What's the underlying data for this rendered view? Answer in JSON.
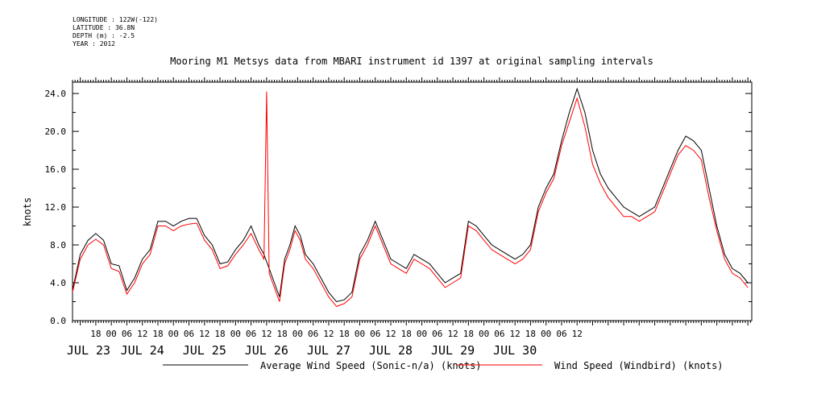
{
  "header": {
    "longitude": "LONGITUDE : 122W(-122)",
    "latitude": "LATITUDE : 36.8N",
    "depth": "DEPTH (m) : -2.5",
    "year": "YEAR : 2012"
  },
  "chart_data": {
    "type": "line",
    "title": "Mooring M1 Metsys data from MBARI instrument id 1397 at original sampling intervals",
    "ylabel": "knots",
    "xlabel": "",
    "ylim": [
      0,
      25.2
    ],
    "xlim": [
      "JUL 23 09:00",
      "JUL 30 15:30"
    ],
    "y_ticks": [
      "0.0",
      "4.0",
      "8.0",
      "12.0",
      "16.0",
      "20.0",
      "24.0"
    ],
    "x_hour_ticks": [
      "18",
      "00",
      "06",
      "12",
      "18",
      "00",
      "06",
      "12",
      "18",
      "00",
      "06",
      "12",
      "18",
      "00",
      "06",
      "12",
      "18",
      "00",
      "06",
      "12",
      "18",
      "00",
      "06",
      "12",
      "18",
      "00",
      "06",
      "12",
      "18",
      "00",
      "06",
      "12"
    ],
    "x_day_labels": [
      "JUL 23",
      "JUL 24",
      "JUL 25",
      "JUL 26",
      "JUL 27",
      "JUL 28",
      "JUL 29",
      "JUL 30"
    ],
    "x_unit": "hours after JUL 23 00:00",
    "series": [
      {
        "name": "Average Wind Speed (Sonic-n/a) (knots)",
        "color": "#000000",
        "values": [
          [
            9,
            3.2
          ],
          [
            12,
            7
          ],
          [
            15,
            8.5
          ],
          [
            18,
            9.2
          ],
          [
            21,
            8.5
          ],
          [
            24,
            6
          ],
          [
            27,
            5.8
          ],
          [
            30,
            3.2
          ],
          [
            33,
            4.5
          ],
          [
            36,
            6.5
          ],
          [
            39,
            7.5
          ],
          [
            42,
            10.5
          ],
          [
            45,
            10.5
          ],
          [
            48,
            10
          ],
          [
            51,
            10.5
          ],
          [
            54,
            10.8
          ],
          [
            57,
            10.8
          ],
          [
            60,
            9
          ],
          [
            63,
            8
          ],
          [
            66,
            6
          ],
          [
            69,
            6.2
          ],
          [
            72,
            7.5
          ],
          [
            75,
            8.5
          ],
          [
            78,
            10
          ],
          [
            81,
            8
          ],
          [
            83,
            7
          ],
          [
            85,
            5.5
          ],
          [
            87,
            4
          ],
          [
            89,
            2.5
          ],
          [
            91,
            6.5
          ],
          [
            93,
            8
          ],
          [
            95,
            10
          ],
          [
            97,
            9
          ],
          [
            99,
            7
          ],
          [
            102,
            6
          ],
          [
            105,
            4.5
          ],
          [
            108,
            3
          ],
          [
            111,
            2
          ],
          [
            114,
            2.2
          ],
          [
            117,
            3
          ],
          [
            120,
            7
          ],
          [
            123,
            8.5
          ],
          [
            126,
            10.5
          ],
          [
            129,
            8.5
          ],
          [
            132,
            6.5
          ],
          [
            135,
            6
          ],
          [
            138,
            5.5
          ],
          [
            141,
            7
          ],
          [
            144,
            6.5
          ],
          [
            147,
            6
          ],
          [
            150,
            5
          ],
          [
            153,
            4
          ],
          [
            156,
            4.5
          ],
          [
            159,
            5
          ],
          [
            162,
            10.5
          ],
          [
            165,
            10
          ],
          [
            168,
            9
          ],
          [
            171,
            8
          ],
          [
            174,
            7.5
          ],
          [
            177,
            7
          ],
          [
            180,
            6.5
          ],
          [
            183,
            7
          ],
          [
            186,
            8
          ],
          [
            189,
            12
          ],
          [
            192,
            14
          ],
          [
            195,
            15.5
          ],
          [
            198,
            19
          ],
          [
            201,
            22
          ],
          [
            204,
            24.5
          ],
          [
            207,
            22
          ],
          [
            210,
            18
          ],
          [
            213,
            15.5
          ],
          [
            216,
            14
          ],
          [
            219,
            13
          ],
          [
            222,
            12
          ],
          [
            225,
            11.5
          ],
          [
            228,
            11
          ],
          [
            231,
            11.5
          ],
          [
            234,
            12
          ],
          [
            237,
            14
          ],
          [
            240,
            16
          ],
          [
            243,
            18
          ],
          [
            246,
            19.5
          ],
          [
            249,
            19
          ],
          [
            252,
            18
          ],
          [
            255,
            14
          ],
          [
            258,
            10
          ],
          [
            261,
            7
          ],
          [
            264,
            5.5
          ],
          [
            267,
            5
          ],
          [
            270,
            4
          ]
        ]
      },
      {
        "name": "Wind Speed (Windbird) (knots)",
        "color": "#ff0000",
        "values": [
          [
            9,
            3
          ],
          [
            12,
            6.5
          ],
          [
            15,
            8
          ],
          [
            18,
            8.6
          ],
          [
            21,
            8
          ],
          [
            24,
            5.5
          ],
          [
            27,
            5.2
          ],
          [
            30,
            2.8
          ],
          [
            33,
            4
          ],
          [
            36,
            6
          ],
          [
            39,
            7
          ],
          [
            42,
            10
          ],
          [
            45,
            10
          ],
          [
            48,
            9.5
          ],
          [
            51,
            10
          ],
          [
            54,
            10.2
          ],
          [
            57,
            10.3
          ],
          [
            60,
            8.5
          ],
          [
            63,
            7.5
          ],
          [
            66,
            5.5
          ],
          [
            69,
            5.8
          ],
          [
            72,
            7
          ],
          [
            75,
            8
          ],
          [
            78,
            9.2
          ],
          [
            81,
            7.5
          ],
          [
            83,
            6.5
          ],
          [
            84,
            24.2
          ],
          [
            85,
            5
          ],
          [
            87,
            3.5
          ],
          [
            89,
            2
          ],
          [
            91,
            6
          ],
          [
            93,
            7.5
          ],
          [
            95,
            9.5
          ],
          [
            97,
            8.5
          ],
          [
            99,
            6.5
          ],
          [
            102,
            5.5
          ],
          [
            105,
            4
          ],
          [
            108,
            2.5
          ],
          [
            111,
            1.5
          ],
          [
            114,
            1.8
          ],
          [
            117,
            2.5
          ],
          [
            120,
            6.5
          ],
          [
            123,
            8
          ],
          [
            126,
            10
          ],
          [
            129,
            8
          ],
          [
            132,
            6
          ],
          [
            135,
            5.5
          ],
          [
            138,
            5
          ],
          [
            141,
            6.5
          ],
          [
            144,
            6
          ],
          [
            147,
            5.5
          ],
          [
            150,
            4.5
          ],
          [
            153,
            3.5
          ],
          [
            156,
            4
          ],
          [
            159,
            4.5
          ],
          [
            162,
            10
          ],
          [
            165,
            9.5
          ],
          [
            168,
            8.5
          ],
          [
            171,
            7.5
          ],
          [
            174,
            7
          ],
          [
            177,
            6.5
          ],
          [
            180,
            6
          ],
          [
            183,
            6.5
          ],
          [
            186,
            7.5
          ],
          [
            189,
            11.5
          ],
          [
            192,
            13.5
          ],
          [
            195,
            15
          ],
          [
            198,
            18.5
          ],
          [
            201,
            21
          ],
          [
            204,
            23.5
          ],
          [
            207,
            20.5
          ],
          [
            210,
            16.5
          ],
          [
            213,
            14.5
          ],
          [
            216,
            13
          ],
          [
            219,
            12
          ],
          [
            222,
            11
          ],
          [
            225,
            11
          ],
          [
            228,
            10.5
          ],
          [
            231,
            11
          ],
          [
            234,
            11.5
          ],
          [
            237,
            13.5
          ],
          [
            240,
            15.5
          ],
          [
            243,
            17.5
          ],
          [
            246,
            18.5
          ],
          [
            249,
            18
          ],
          [
            252,
            17
          ],
          [
            255,
            13
          ],
          [
            258,
            9.5
          ],
          [
            261,
            6.5
          ],
          [
            264,
            5
          ],
          [
            267,
            4.5
          ],
          [
            270,
            3.5
          ]
        ]
      }
    ],
    "legend": {
      "placement": "bottom",
      "line_label": "Average Wind Speed (Sonic-n/a) (knots)",
      "red_label": "Wind Speed (Windbird) (knots)"
    }
  }
}
